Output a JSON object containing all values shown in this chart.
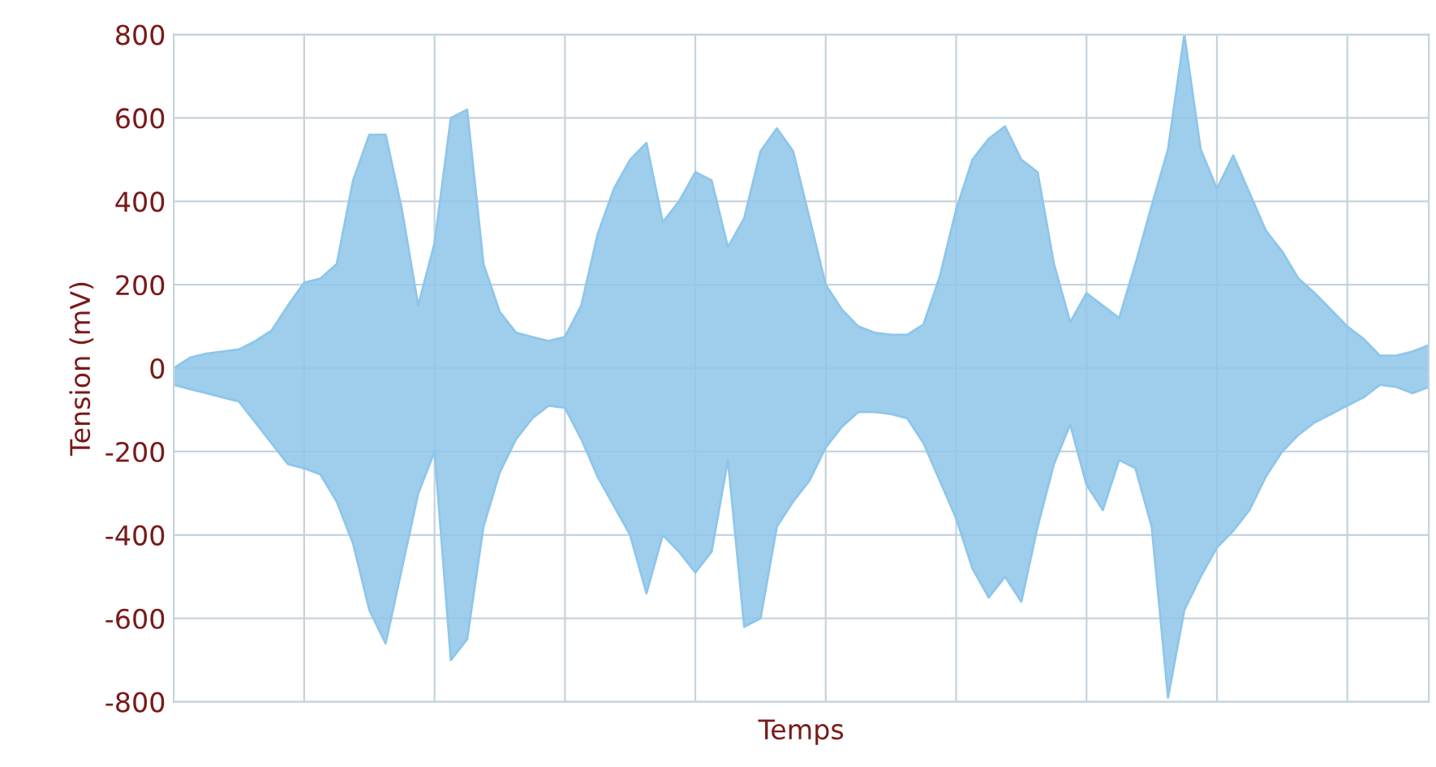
{
  "chart_data": {
    "type": "area",
    "xlabel": "Temps",
    "ylabel": "Tension (mV)",
    "ylim": [
      -800,
      800
    ],
    "categories": [
      null,
      null,
      null,
      null,
      null,
      null,
      null,
      null,
      null,
      null,
      null,
      null,
      null,
      null,
      null,
      null,
      null,
      null,
      null,
      null,
      null,
      null,
      null,
      null,
      null,
      null,
      null,
      null,
      null,
      null,
      null,
      null,
      null,
      null,
      null,
      null,
      null,
      null,
      null,
      null,
      null,
      null,
      null,
      null,
      null,
      null,
      null,
      null,
      null,
      null,
      null,
      null,
      null,
      null,
      null,
      null,
      null,
      null,
      null,
      null,
      null,
      null,
      null,
      null,
      null,
      null,
      null,
      null,
      null,
      null,
      null,
      null,
      null,
      null,
      null,
      null,
      null,
      null
    ],
    "yticks": [
      800,
      600,
      400,
      200,
      0,
      -200,
      -400,
      -600,
      -800
    ],
    "grid": true,
    "series": [
      {
        "color": "#8ec6ea",
        "values": [
          0,
          25,
          35,
          40,
          45,
          65,
          90,
          150,
          205,
          215,
          250,
          450,
          560,
          560,
          380,
          150,
          300,
          600,
          620,
          250,
          135,
          85,
          75,
          65,
          75,
          150,
          320,
          430,
          500,
          540,
          350,
          400,
          470,
          450,
          290,
          360,
          520,
          575,
          520,
          360,
          200,
          140,
          100,
          85,
          80,
          80,
          105,
          220,
          380,
          500,
          550,
          580,
          500,
          470,
          250,
          110,
          180,
          150,
          120,
          250,
          390,
          525,
          800,
          525,
          430,
          510,
          420,
          330,
          280,
          215,
          180,
          140,
          100,
          70,
          30,
          30,
          40,
          55
        ]
      },
      {
        "color": "#8ec6ea",
        "values": [
          -40,
          -50,
          -60,
          -70,
          -80,
          -130,
          -180,
          -230,
          -240,
          -255,
          -320,
          -420,
          -580,
          -660,
          -480,
          -300,
          -200,
          -700,
          -650,
          -380,
          -250,
          -170,
          -120,
          -90,
          -95,
          -170,
          -260,
          -330,
          -400,
          -540,
          -400,
          -440,
          -490,
          -440,
          -220,
          -620,
          -600,
          -380,
          -320,
          -270,
          -190,
          -140,
          -105,
          -105,
          -110,
          -120,
          -180,
          -270,
          -360,
          -480,
          -550,
          -500,
          -560,
          -380,
          -230,
          -135,
          -280,
          -340,
          -220,
          -240,
          -380,
          -790,
          -580,
          -500,
          -430,
          -390,
          -340,
          -260,
          -200,
          -160,
          -130,
          -110,
          -90,
          -70,
          -40,
          -45,
          -60,
          -45
        ]
      }
    ]
  }
}
